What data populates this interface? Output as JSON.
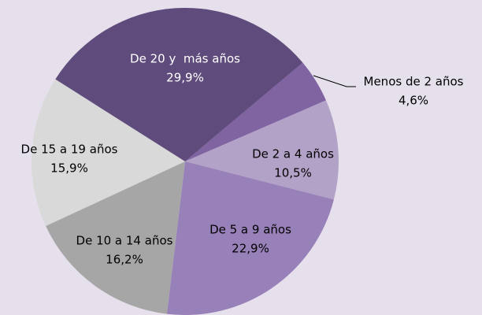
{
  "chart_data": {
    "type": "pie",
    "categories": [
      "Menos de 2 años",
      "De 2 a 4 años",
      "De 5 a 9 años",
      "De 10 a 14 años",
      "De 15 a 19 años",
      "De 20 y  más años"
    ],
    "values": [
      4.6,
      10.5,
      22.9,
      16.2,
      15.9,
      29.9
    ],
    "value_labels": [
      "4,6%",
      "10,5%",
      "22,9%",
      "16,2%",
      "15,9%",
      "29,9%"
    ],
    "colors": [
      "#8064a2",
      "#b3a2c7",
      "#9880b8",
      "#a6a6a6",
      "#d9d9d9",
      "#5f4b7c"
    ]
  }
}
